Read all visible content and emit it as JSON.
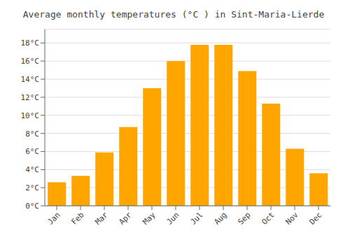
{
  "chart_data": {
    "type": "bar",
    "title": "Average monthly temperatures (°C ) in Sint-Maria-Lierde",
    "categories": [
      "Jan",
      "Feb",
      "Mar",
      "Apr",
      "May",
      "Jun",
      "Jul",
      "Aug",
      "Sep",
      "Oct",
      "Nov",
      "Dec"
    ],
    "values": [
      2.6,
      3.3,
      5.9,
      8.7,
      13.0,
      16.0,
      17.8,
      17.8,
      14.9,
      11.3,
      6.3,
      3.6
    ],
    "color": "#FFA500",
    "ylim": [
      0,
      19.5
    ],
    "yticks": [
      {
        "value": 0,
        "label": "0°C"
      },
      {
        "value": 2,
        "label": "2°C"
      },
      {
        "value": 4,
        "label": "4°C"
      },
      {
        "value": 6,
        "label": "6°C"
      },
      {
        "value": 8,
        "label": "8°C"
      },
      {
        "value": 10,
        "label": "10°C"
      },
      {
        "value": 12,
        "label": "12°C"
      },
      {
        "value": 14,
        "label": "14°C"
      },
      {
        "value": 16,
        "label": "16°C"
      },
      {
        "value": 18,
        "label": "18°C"
      }
    ],
    "grid": true
  }
}
